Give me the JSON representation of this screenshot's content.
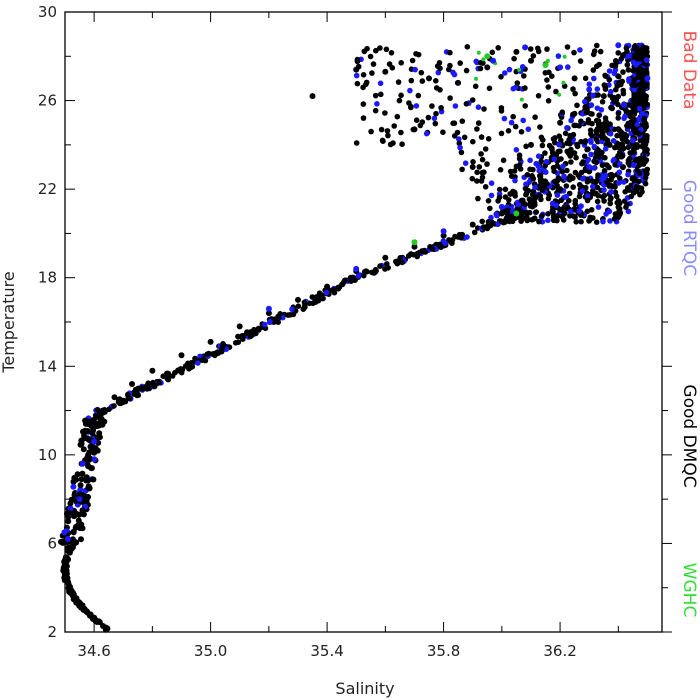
{
  "chart_data": {
    "type": "scatter",
    "xlabel": "Salinity",
    "ylabel": "Temperature",
    "xlim": [
      34.5,
      36.55
    ],
    "ylim": [
      2,
      30
    ],
    "xticks": [
      "34.6",
      "35.0",
      "35.4",
      "35.8",
      "36.2"
    ],
    "yticks": [
      "2",
      "6",
      "10",
      "14",
      "18",
      "22",
      "26",
      "30"
    ],
    "grid": false,
    "legend_position": "right, vertical",
    "legend": [
      {
        "name": "Bad Data",
        "color": "#ff5050"
      },
      {
        "name": "Good RTQC",
        "color": "#8a8aff"
      },
      {
        "name": "Good DMQC",
        "color": "#000000"
      },
      {
        "name": "WGHC",
        "color": "#33dd33"
      }
    ],
    "series": [
      {
        "name": "Good DMQC",
        "color": "#000000",
        "points": [
          [
            34.64,
            2.1
          ],
          [
            34.6,
            2.6
          ],
          [
            34.56,
            3.2
          ],
          [
            34.52,
            3.9
          ],
          [
            34.5,
            4.6
          ],
          [
            34.5,
            5.2
          ],
          [
            34.51,
            5.8
          ],
          [
            34.53,
            6.5
          ],
          [
            34.56,
            7.5
          ],
          [
            34.58,
            8.5
          ],
          [
            34.59,
            9.4
          ],
          [
            34.6,
            10.2
          ],
          [
            34.62,
            10.8
          ],
          [
            34.6,
            11.4
          ],
          [
            34.63,
            12.0
          ],
          [
            34.67,
            12.6
          ],
          [
            34.73,
            13.2
          ],
          [
            34.8,
            13.8
          ],
          [
            34.9,
            14.5
          ],
          [
            35.0,
            15.1
          ],
          [
            35.1,
            15.8
          ],
          [
            35.2,
            16.4
          ],
          [
            35.3,
            17.0
          ],
          [
            35.4,
            17.6
          ],
          [
            35.5,
            18.3
          ],
          [
            35.6,
            18.9
          ],
          [
            35.7,
            19.4
          ],
          [
            35.8,
            19.9
          ],
          [
            35.9,
            20.4
          ],
          [
            36.0,
            20.9
          ],
          [
            36.1,
            21.4
          ],
          [
            36.2,
            22.0
          ],
          [
            36.3,
            22.8
          ],
          [
            36.4,
            23.5
          ],
          [
            36.47,
            24.5
          ],
          [
            36.45,
            25.5
          ],
          [
            36.35,
            26.2
          ],
          [
            36.25,
            27.0
          ],
          [
            36.1,
            27.8
          ],
          [
            36.05,
            28.2
          ],
          [
            35.95,
            27.5
          ],
          [
            35.85,
            26.8
          ],
          [
            35.75,
            27.0
          ],
          [
            35.6,
            27.3
          ],
          [
            35.5,
            27.4
          ],
          [
            35.35,
            26.2
          ],
          [
            35.7,
            24.7
          ],
          [
            36.1,
            24.0
          ],
          [
            36.2,
            25.0
          ],
          [
            35.9,
            23.0
          ]
        ]
      },
      {
        "name": "Good RTQC",
        "color": "#1a1aff",
        "points": [
          [
            34.51,
            6.2
          ],
          [
            34.55,
            8.0
          ],
          [
            34.56,
            9.6
          ],
          [
            34.6,
            10.6
          ],
          [
            35.2,
            16.6
          ],
          [
            35.5,
            18.4
          ],
          [
            35.8,
            20.1
          ],
          [
            36.0,
            21.2
          ],
          [
            36.3,
            23.0
          ],
          [
            36.45,
            24.2
          ],
          [
            36.42,
            25.8
          ],
          [
            36.3,
            26.5
          ],
          [
            36.2,
            27.5
          ],
          [
            36.08,
            28.4
          ],
          [
            36.4,
            28.5
          ],
          [
            36.5,
            27.0
          ],
          [
            35.97,
            27.8
          ],
          [
            36.35,
            22.5
          ]
        ]
      },
      {
        "name": "WGHC",
        "color": "#22cc22",
        "points": [
          [
            35.95,
            28.0
          ],
          [
            36.15,
            27.6
          ],
          [
            36.05,
            20.9
          ],
          [
            35.7,
            19.6
          ]
        ]
      }
    ]
  }
}
